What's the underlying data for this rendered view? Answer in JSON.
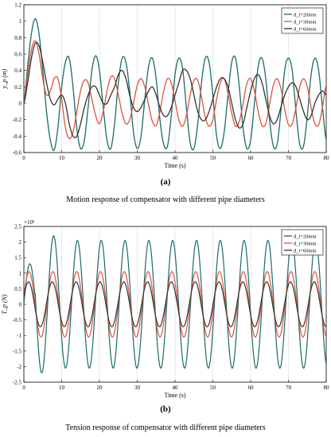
{
  "chart_data": [
    {
      "type": "line",
      "panel_label": "(a)",
      "caption": "Motion response of compensator with different pipe diameters",
      "xlabel": "Time (s)",
      "ylabel": "y_p (m)",
      "xlim": [
        0,
        80
      ],
      "ylim": [
        -0.6,
        1.2
      ],
      "xticks": [
        "0",
        "10",
        "20",
        "30",
        "40",
        "50",
        "60",
        "70",
        "80"
      ],
      "yticks": [
        "-0.6",
        "-0.4",
        "-0.2",
        "0",
        "0.2",
        "0.4",
        "0.6",
        "0.8",
        "1",
        "1.2"
      ],
      "xtick_values": [
        0,
        10,
        20,
        30,
        40,
        50,
        60,
        70,
        80
      ],
      "ytick_values": [
        -0.6,
        -0.4,
        -0.2,
        0,
        0.2,
        0.4,
        0.6,
        0.8,
        1,
        1.2
      ],
      "grid": "vertical dotted",
      "legend_position": "top-right",
      "series": [
        {
          "name": "d_i=20mm",
          "color": "#1a6b6b",
          "x": [
            0,
            1,
            2,
            3,
            4,
            5,
            6,
            7,
            8,
            9,
            10,
            11,
            12,
            13,
            14,
            15,
            16,
            17,
            18,
            19,
            20,
            21,
            22,
            23,
            24,
            25,
            26,
            27,
            28,
            29,
            30,
            31,
            32,
            33,
            34,
            35,
            36,
            37,
            38,
            39,
            40,
            41,
            42,
            43,
            44,
            45,
            46,
            47,
            48,
            49,
            50,
            51,
            52,
            53,
            54,
            55,
            56,
            57,
            58,
            59,
            60,
            61,
            62,
            63,
            64,
            65,
            66,
            67,
            68,
            69,
            70,
            71,
            72,
            73,
            74,
            75,
            76,
            77,
            78,
            79,
            80
          ],
          "y": [
            0,
            0.45,
            0.85,
            1.03,
            0.85,
            0.4,
            -0.1,
            -0.45,
            -0.57,
            -0.3,
            0.2,
            0.5,
            0.55,
            0.2,
            -0.3,
            -0.55,
            -0.45,
            -0.05,
            0.4,
            0.58,
            0.4,
            -0.05,
            -0.45,
            -0.55,
            -0.25,
            0.25,
            0.55,
            0.5,
            0.15,
            -0.35,
            -0.55,
            -0.4,
            0.05,
            0.45,
            0.55,
            0.3,
            -0.2,
            -0.5,
            -0.52,
            -0.15,
            0.35,
            0.55,
            0.42,
            -0.05,
            -0.48,
            -0.55,
            -0.25,
            0.25,
            0.55,
            0.5,
            0.1,
            -0.4,
            -0.55,
            -0.35,
            0.1,
            0.5,
            0.55,
            0.2,
            -0.3,
            -0.55,
            -0.45,
            0.0,
            0.45,
            0.55,
            0.3,
            -0.2,
            -0.52,
            -0.5,
            -0.1,
            0.4,
            0.55,
            0.4,
            -0.1,
            -0.5,
            -0.52,
            -0.15,
            0.35,
            0.55,
            0.4,
            -0.05,
            -0.45
          ]
        },
        {
          "name": "d_i=30mm",
          "color": "#e0523a",
          "x": [
            0,
            1,
            2,
            3,
            4,
            5,
            6,
            7,
            8,
            9,
            10,
            11,
            12,
            13,
            14,
            15,
            16,
            17,
            18,
            19,
            20,
            21,
            22,
            23,
            24,
            25,
            26,
            27,
            28,
            29,
            30,
            31,
            32,
            33,
            34,
            35,
            36,
            37,
            38,
            39,
            40,
            41,
            42,
            43,
            44,
            45,
            46,
            47,
            48,
            49,
            50,
            51,
            52,
            53,
            54,
            55,
            56,
            57,
            58,
            59,
            60,
            61,
            62,
            63,
            64,
            65,
            66,
            67,
            68,
            69,
            70,
            71,
            72,
            73,
            74,
            75,
            76,
            77,
            78,
            79,
            80
          ],
          "y": [
            0,
            0.35,
            0.65,
            0.76,
            0.6,
            0.3,
            0.1,
            0.15,
            0.3,
            0.3,
            0.05,
            -0.3,
            -0.43,
            -0.35,
            -0.1,
            0.15,
            0.28,
            0.25,
            0.05,
            -0.15,
            -0.25,
            -0.1,
            0.15,
            0.32,
            0.3,
            0.1,
            -0.12,
            -0.25,
            -0.2,
            0.0,
            0.22,
            0.3,
            0.2,
            -0.02,
            -0.22,
            -0.27,
            -0.1,
            0.15,
            0.3,
            0.25,
            0.03,
            -0.2,
            -0.28,
            -0.15,
            0.1,
            0.28,
            0.28,
            0.08,
            -0.17,
            -0.28,
            -0.2,
            0.05,
            0.25,
            0.3,
            0.12,
            -0.12,
            -0.28,
            -0.22,
            0.0,
            0.24,
            0.3,
            0.15,
            -0.1,
            -0.27,
            -0.25,
            -0.02,
            0.22,
            0.3,
            0.18,
            -0.07,
            -0.26,
            -0.25,
            -0.05,
            0.2,
            0.3,
            0.2,
            -0.05,
            -0.25,
            -0.26,
            -0.05,
            0.22
          ]
        },
        {
          "name": "d_i=60mm",
          "color": "#333333",
          "x": [
            0,
            1,
            2,
            3,
            4,
            5,
            6,
            7,
            8,
            9,
            10,
            11,
            12,
            13,
            14,
            15,
            16,
            17,
            18,
            19,
            20,
            21,
            22,
            23,
            24,
            25,
            26,
            27,
            28,
            29,
            30,
            31,
            32,
            33,
            34,
            35,
            36,
            37,
            38,
            39,
            40,
            41,
            42,
            43,
            44,
            45,
            46,
            47,
            48,
            49,
            50,
            51,
            52,
            53,
            54,
            55,
            56,
            57,
            58,
            59,
            60,
            61,
            62,
            63,
            64,
            65,
            66,
            67,
            68,
            69,
            70,
            71,
            72,
            73,
            74,
            75,
            76,
            77,
            78,
            79,
            80
          ],
          "y": [
            0,
            0.25,
            0.55,
            0.73,
            0.7,
            0.5,
            0.25,
            0.05,
            -0.02,
            0.05,
            0.1,
            0.0,
            -0.25,
            -0.4,
            -0.4,
            -0.25,
            -0.05,
            0.1,
            0.2,
            0.2,
            0.1,
            0.0,
            0.0,
            0.1,
            0.2,
            0.35,
            0.4,
            0.3,
            0.1,
            -0.05,
            -0.1,
            -0.05,
            0.05,
            0.15,
            0.2,
            0.1,
            -0.05,
            -0.15,
            -0.15,
            -0.05,
            0.1,
            0.25,
            0.4,
            0.4,
            0.3,
            0.1,
            -0.1,
            -0.2,
            -0.2,
            -0.1,
            0.05,
            0.2,
            0.3,
            0.3,
            0.2,
            0.0,
            -0.2,
            -0.3,
            -0.25,
            -0.05,
            0.15,
            0.3,
            0.35,
            0.25,
            0.05,
            -0.15,
            -0.25,
            -0.2,
            -0.05,
            0.1,
            0.2,
            0.25,
            0.2,
            0.05,
            -0.1,
            -0.2,
            -0.15,
            0.0,
            0.1,
            0.15,
            0.1
          ]
        }
      ]
    },
    {
      "type": "line",
      "panel_label": "(b)",
      "caption": "Tension response of compensator with different pipe diameters",
      "xlabel": "Time (s)",
      "ylabel": "T_p (N)",
      "y_multiplier": "×10⁵",
      "xlim": [
        0,
        80
      ],
      "ylim": [
        -2.5,
        2.5
      ],
      "xticks": [
        "0",
        "10",
        "20",
        "30",
        "40",
        "50",
        "60",
        "70",
        "80"
      ],
      "yticks": [
        "-2.5",
        "-2",
        "-1.5",
        "-1",
        "-0.5",
        "0",
        "0.5",
        "1",
        "1.5",
        "2",
        "2.5"
      ],
      "xtick_values": [
        0,
        10,
        20,
        30,
        40,
        50,
        60,
        70,
        80
      ],
      "ytick_values": [
        -2.5,
        -2,
        -1.5,
        -1,
        -0.5,
        0,
        0.5,
        1,
        1.5,
        2,
        2.5
      ],
      "grid": "vertical dotted",
      "legend_position": "top-right",
      "series": [
        {
          "name": "d_i=20mm",
          "color": "#1a6b6b",
          "amplitude": 2.05,
          "period": 6.3,
          "phase": 0.0,
          "peak_first": 1.3,
          "peak_second": 2.2
        },
        {
          "name": "d_i=30mm",
          "color": "#e0523a",
          "amplitude": 1.05,
          "period": 6.3,
          "phase": 0.2
        },
        {
          "name": "d_i=60mm",
          "color": "#333333",
          "amplitude": 0.72,
          "period": 6.3,
          "phase": 0.35
        }
      ]
    }
  ]
}
